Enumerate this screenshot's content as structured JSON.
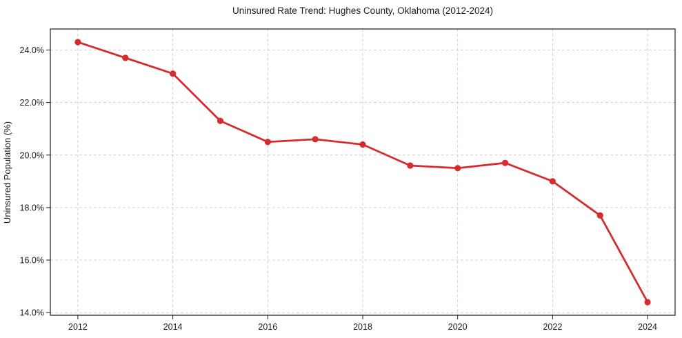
{
  "chart_data": {
    "type": "line",
    "title": "Uninsured Rate Trend: Hughes County, Oklahoma (2012-2024)",
    "xlabel": "",
    "ylabel": "Uninsured Population (%)",
    "series": [
      {
        "name": "Uninsured rate",
        "x": [
          2012,
          2013,
          2014,
          2015,
          2016,
          2017,
          2018,
          2019,
          2020,
          2021,
          2022,
          2023,
          2024
        ],
        "values": [
          24.3,
          23.7,
          23.1,
          21.3,
          20.5,
          20.6,
          20.4,
          19.6,
          19.5,
          19.7,
          19.0,
          17.7,
          14.4
        ]
      }
    ],
    "xlim": [
      2011.42,
      2024.58
    ],
    "ylim": [
      13.9,
      24.8
    ],
    "xticks": [
      2012,
      2014,
      2016,
      2018,
      2020,
      2022,
      2024
    ],
    "xtick_labels": [
      "2012",
      "2014",
      "2016",
      "2018",
      "2020",
      "2022",
      "2024"
    ],
    "yticks": [
      14,
      16,
      18,
      20,
      22,
      24
    ],
    "ytick_labels": [
      "14.0%",
      "16.0%",
      "18.0%",
      "20.0%",
      "22.0%",
      "24.0%"
    ],
    "grid": true,
    "grid_style": "dashed",
    "legend": "none",
    "marker": "circle",
    "colors": {
      "line": "#d62b2f",
      "marker": "#d62b2f",
      "grid": "#cccccc",
      "spine": "#1a1a1a",
      "text": "#1a1a1a",
      "background": "#ffffff"
    }
  }
}
